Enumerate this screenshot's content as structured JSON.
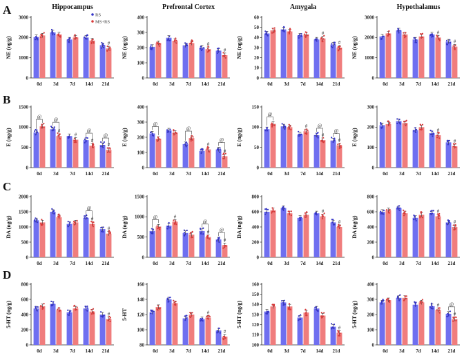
{
  "figure": {
    "row_labels": [
      "A",
      "B",
      "C",
      "D"
    ],
    "legend": [
      {
        "name": "RS",
        "color": "#6f6ff0"
      },
      {
        "name": "MS+RS",
        "color": "#f07d7d"
      }
    ],
    "colors": {
      "rs": "#6f6ff0",
      "msrs": "#f07d7d",
      "rs_dot": "#3535c8",
      "msrs_dot": "#d83a3a",
      "axis": "#222222"
    }
  },
  "chart_data": [
    {
      "type": "bar",
      "title": "Hippocampus",
      "ylabel": "NE (ng/g)",
      "categories": [
        "0d",
        "3d",
        "7d",
        "14d",
        "21d"
      ],
      "ylim": [
        0,
        3000
      ],
      "yticks": [
        0,
        1000,
        2000,
        3000
      ],
      "series": [
        {
          "name": "RS",
          "values": [
            2020,
            2250,
            1900,
            2000,
            1620
          ]
        },
        {
          "name": "MS+RS",
          "values": [
            2100,
            2150,
            2000,
            1850,
            1460
          ]
        }
      ],
      "annotations": [
        {
          "text": "#",
          "category": "21d",
          "series": "MS+RS"
        }
      ]
    },
    {
      "type": "bar",
      "title": "Prefrontal Cortex",
      "ylabel": "NE (ng/g)",
      "categories": [
        "0d",
        "3d",
        "7d",
        "14d",
        "21d"
      ],
      "ylim": [
        0,
        400
      ],
      "yticks": [
        0,
        100,
        200,
        300,
        400
      ],
      "series": [
        {
          "name": "RS",
          "values": [
            205,
            265,
            215,
            200,
            180
          ]
        },
        {
          "name": "MS+RS",
          "values": [
            230,
            245,
            230,
            190,
            150
          ]
        }
      ],
      "annotations": [
        {
          "text": "#",
          "category": "14d",
          "series": "MS+RS"
        },
        {
          "text": "#",
          "category": "21d",
          "series": "MS+RS"
        }
      ]
    },
    {
      "type": "bar",
      "title": "Amygala",
      "ylabel": "NE (ng/g)",
      "categories": [
        "0d",
        "3d",
        "7d",
        "14d",
        "21d"
      ],
      "ylim": [
        0,
        60
      ],
      "yticks": [
        0,
        10,
        20,
        30,
        40,
        50,
        60
      ],
      "series": [
        {
          "name": "RS",
          "values": [
            44,
            48,
            42,
            38,
            33
          ]
        },
        {
          "name": "MS+RS",
          "values": [
            47,
            46,
            43,
            39,
            30
          ]
        }
      ],
      "annotations": [
        {
          "text": "#",
          "category": "14d",
          "series": "MS+RS"
        },
        {
          "text": "#",
          "category": "21d",
          "series": "MS+RS"
        }
      ]
    },
    {
      "type": "bar",
      "title": "Hypothalamus",
      "ylabel": "NE (ng/g)",
      "categories": [
        "0d",
        "3d",
        "7d",
        "14d",
        "21d"
      ],
      "ylim": [
        0,
        3000
      ],
      "yticks": [
        0,
        1000,
        2000,
        3000
      ],
      "series": [
        {
          "name": "RS",
          "values": [
            2050,
            2350,
            1900,
            2150,
            1800
          ]
        },
        {
          "name": "MS+RS",
          "values": [
            2200,
            2150,
            2050,
            2000,
            1550
          ]
        }
      ],
      "annotations": [
        {
          "text": "#",
          "category": "14d",
          "series": "MS+RS"
        },
        {
          "text": "#",
          "category": "21d",
          "series": "MS+RS"
        }
      ]
    },
    {
      "type": "bar",
      "title": "",
      "ylabel": "E (ng/g)",
      "categories": [
        "0d",
        "3d",
        "7d",
        "14d",
        "21d"
      ],
      "ylim": [
        0,
        1500
      ],
      "yticks": [
        0,
        500,
        1000,
        1500
      ],
      "series": [
        {
          "name": "RS",
          "values": [
            870,
            950,
            780,
            680,
            560
          ]
        },
        {
          "name": "MS+RS",
          "values": [
            1020,
            780,
            690,
            540,
            440
          ]
        }
      ],
      "annotations": [
        {
          "text": "@",
          "category": "0d",
          "series": "both"
        },
        {
          "text": "@",
          "category": "3d",
          "series": "both"
        },
        {
          "text": "@",
          "category": "14d",
          "series": "both"
        },
        {
          "text": "@",
          "category": "21d",
          "series": "both"
        },
        {
          "text": "#",
          "category": "3d",
          "series": "MS+RS"
        },
        {
          "text": "#",
          "category": "7d",
          "series": "MS+RS"
        },
        {
          "text": "#",
          "category": "14d",
          "series": "MS+RS"
        },
        {
          "text": "#",
          "category": "21d",
          "series": "MS+RS"
        }
      ]
    },
    {
      "type": "bar",
      "title": "",
      "ylabel": "E (ng/g)",
      "categories": [
        "0d",
        "3d",
        "7d",
        "14d",
        "21d"
      ],
      "ylim": [
        0,
        400
      ],
      "yticks": [
        0,
        100,
        200,
        300,
        400
      ],
      "series": [
        {
          "name": "RS",
          "values": [
            225,
            245,
            155,
            110,
            120
          ]
        },
        {
          "name": "MS+RS",
          "values": [
            190,
            230,
            195,
            120,
            75
          ]
        }
      ],
      "annotations": [
        {
          "text": "@",
          "category": "0d",
          "series": "both"
        },
        {
          "text": "@",
          "category": "7d",
          "series": "both"
        },
        {
          "text": "@",
          "category": "21d",
          "series": "both"
        },
        {
          "text": "#",
          "category": "14d",
          "series": "MS+RS"
        },
        {
          "text": "#",
          "category": "21d",
          "series": "MS+RS"
        }
      ]
    },
    {
      "type": "bar",
      "title": "",
      "ylabel": "E (ng/g)",
      "categories": [
        "0d",
        "3d",
        "7d",
        "14d",
        "21d"
      ],
      "ylim": [
        0,
        150
      ],
      "yticks": [
        0,
        50,
        100,
        150
      ],
      "series": [
        {
          "name": "RS",
          "values": [
            95,
            102,
            82,
            80,
            67
          ]
        },
        {
          "name": "MS+RS",
          "values": [
            108,
            100,
            90,
            68,
            55
          ]
        }
      ],
      "annotations": [
        {
          "text": "@",
          "category": "0d",
          "series": "both"
        },
        {
          "text": "@",
          "category": "14d",
          "series": "both"
        },
        {
          "text": "@",
          "category": "21d",
          "series": "both"
        },
        {
          "text": "#",
          "category": "7d",
          "series": "MS+RS"
        },
        {
          "text": "#",
          "category": "14d",
          "series": "MS+RS"
        },
        {
          "text": "#",
          "category": "21d",
          "series": "MS+RS"
        }
      ]
    },
    {
      "type": "bar",
      "title": "",
      "ylabel": "E (ng/g)",
      "categories": [
        "0d",
        "3d",
        "7d",
        "14d",
        "21d"
      ],
      "ylim": [
        0,
        300
      ],
      "yticks": [
        0,
        100,
        200,
        300
      ],
      "series": [
        {
          "name": "RS",
          "values": [
            210,
            230,
            185,
            170,
            125
          ]
        },
        {
          "name": "MS+RS",
          "values": [
            215,
            220,
            200,
            160,
            105
          ]
        }
      ],
      "annotations": [
        {
          "text": "#",
          "category": "14d",
          "series": "MS+RS"
        },
        {
          "text": "#",
          "category": "21d",
          "series": "MS+RS"
        }
      ]
    },
    {
      "type": "bar",
      "title": "",
      "ylabel": "DA (ng/g)",
      "categories": [
        "0d",
        "3d",
        "7d",
        "14d",
        "21d"
      ],
      "ylim": [
        0,
        2000
      ],
      "yticks": [
        0,
        500,
        1000,
        1500,
        2000
      ],
      "series": [
        {
          "name": "RS",
          "values": [
            1220,
            1500,
            1100,
            1300,
            930
          ]
        },
        {
          "name": "MS+RS",
          "values": [
            1150,
            1320,
            1150,
            1100,
            780
          ]
        }
      ],
      "annotations": [
        {
          "text": "@",
          "category": "14d",
          "series": "both"
        },
        {
          "text": "#",
          "category": "14d",
          "series": "MS+RS"
        },
        {
          "text": "#",
          "category": "21d",
          "series": "MS+RS"
        }
      ]
    },
    {
      "type": "bar",
      "title": "",
      "ylabel": "DA (ng/g)",
      "categories": [
        "0d",
        "3d",
        "7d",
        "14d",
        "21d"
      ],
      "ylim": [
        0,
        1500
      ],
      "yticks": [
        0,
        500,
        1000,
        1500
      ],
      "series": [
        {
          "name": "RS",
          "values": [
            650,
            780,
            600,
            650,
            440
          ]
        },
        {
          "name": "MS+RS",
          "values": [
            760,
            880,
            560,
            500,
            300
          ]
        }
      ],
      "annotations": [
        {
          "text": "@",
          "category": "0d",
          "series": "both"
        },
        {
          "text": "@",
          "category": "14d",
          "series": "both"
        },
        {
          "text": "@",
          "category": "21d",
          "series": "both"
        },
        {
          "text": "#",
          "category": "3d",
          "series": "MS+RS"
        },
        {
          "text": "#",
          "category": "14d",
          "series": "MS+RS"
        },
        {
          "text": "#",
          "category": "21d",
          "series": "MS+RS"
        }
      ]
    },
    {
      "type": "bar",
      "title": "",
      "ylabel": "DA (ng/g)",
      "categories": [
        "0d",
        "3d",
        "7d",
        "14d",
        "21d"
      ],
      "ylim": [
        0,
        800
      ],
      "yticks": [
        0,
        200,
        400,
        600,
        800
      ],
      "series": [
        {
          "name": "RS",
          "values": [
            600,
            650,
            520,
            580,
            460
          ]
        },
        {
          "name": "MS+RS",
          "values": [
            620,
            580,
            560,
            540,
            400
          ]
        }
      ],
      "annotations": [
        {
          "text": "#",
          "category": "14d",
          "series": "MS+RS"
        },
        {
          "text": "#",
          "category": "21d",
          "series": "MS+RS"
        }
      ]
    },
    {
      "type": "bar",
      "title": "",
      "ylabel": "DA (ng/g)",
      "categories": [
        "0d",
        "3d",
        "7d",
        "14d",
        "21d"
      ],
      "ylim": [
        0,
        800
      ],
      "yticks": [
        0,
        200,
        400,
        600,
        800
      ],
      "series": [
        {
          "name": "RS",
          "values": [
            600,
            650,
            520,
            580,
            460
          ]
        },
        {
          "name": "MS+RS",
          "values": [
            620,
            580,
            560,
            540,
            400
          ]
        }
      ],
      "annotations": [
        {
          "text": "#",
          "category": "14d",
          "series": "MS+RS"
        },
        {
          "text": "#",
          "category": "21d",
          "series": "MS+RS"
        }
      ]
    },
    {
      "type": "bar",
      "title": "",
      "ylabel": "5-HT (ng/g)",
      "categories": [
        "0d",
        "3d",
        "7d",
        "14d",
        "21d"
      ],
      "ylim": [
        0,
        800
      ],
      "yticks": [
        0,
        200,
        400,
        600,
        800
      ],
      "series": [
        {
          "name": "RS",
          "values": [
            480,
            540,
            430,
            480,
            400
          ]
        },
        {
          "name": "MS+RS",
          "values": [
            510,
            460,
            480,
            440,
            340
          ]
        }
      ],
      "annotations": [
        {
          "text": "#",
          "category": "21d",
          "series": "MS+RS"
        }
      ]
    },
    {
      "type": "bar",
      "title": "",
      "ylabel": "5-HT",
      "categories": [
        "0d",
        "3d",
        "7d",
        "14d",
        "21d"
      ],
      "ylim": [
        80,
        160
      ],
      "yticks": [
        80,
        100,
        120,
        140,
        160
      ],
      "series": [
        {
          "name": "RS",
          "values": [
            123,
            140,
            115,
            114,
            99
          ]
        },
        {
          "name": "MS+RS",
          "values": [
            130,
            135,
            120,
            116,
            91
          ]
        }
      ],
      "annotations": [
        {
          "text": "#",
          "category": "14d",
          "series": "MS+RS"
        },
        {
          "text": "#",
          "category": "21d",
          "series": "MS+RS"
        }
      ]
    },
    {
      "type": "bar",
      "title": "",
      "ylabel": "5-HT (ng/g)",
      "categories": [
        "0d",
        "3d",
        "7d",
        "14d",
        "21d"
      ],
      "ylim": [
        100,
        160
      ],
      "yticks": [
        100,
        110,
        120,
        130,
        140,
        150,
        160
      ],
      "series": [
        {
          "name": "RS",
          "values": [
            133,
            142,
            127,
            136,
            118
          ]
        },
        {
          "name": "MS+RS",
          "values": [
            138,
            138,
            132,
            129,
            112
          ]
        }
      ],
      "annotations": [
        {
          "text": "#",
          "category": "21d",
          "series": "MS+RS"
        }
      ]
    },
    {
      "type": "bar",
      "title": "",
      "ylabel": "5-HT (ng/g)",
      "categories": [
        "0d",
        "3d",
        "7d",
        "14d",
        "21d"
      ],
      "ylim": [
        0,
        400
      ],
      "yticks": [
        0,
        100,
        200,
        300,
        400
      ],
      "series": [
        {
          "name": "RS",
          "values": [
            280,
            310,
            265,
            255,
            205
          ]
        },
        {
          "name": "MS+RS",
          "values": [
            295,
            310,
            280,
            230,
            170
          ]
        }
      ],
      "annotations": [
        {
          "text": "@",
          "category": "21d",
          "series": "both"
        },
        {
          "text": "#",
          "category": "14d",
          "series": "MS+RS"
        },
        {
          "text": "#",
          "category": "21d",
          "series": "MS+RS"
        }
      ]
    }
  ]
}
